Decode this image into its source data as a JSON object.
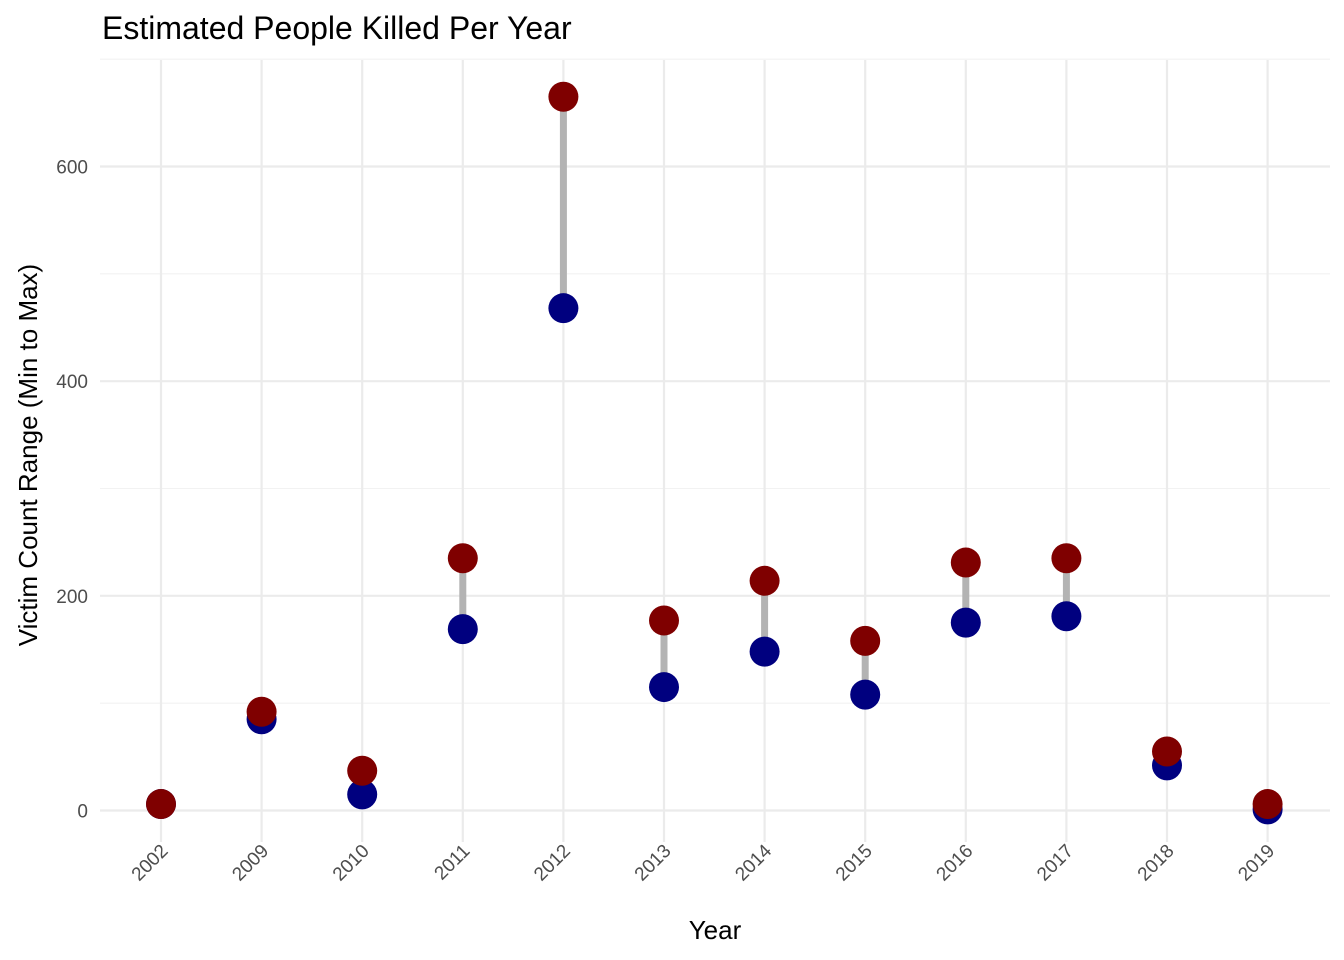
{
  "chart_data": {
    "type": "scatter",
    "subtype": "dumbbell",
    "title": "Estimated People Killed Per Year",
    "xlabel": "Year",
    "ylabel": "Victim Count Range (Min to Max)",
    "categories": [
      "2002",
      "2009",
      "2010",
      "2011",
      "2012",
      "2013",
      "2014",
      "2015",
      "2016",
      "2017",
      "2018",
      "2019"
    ],
    "series": [
      {
        "name": "min",
        "color": "#00007f",
        "values": [
          6,
          85,
          15,
          169,
          468,
          115,
          148,
          108,
          175,
          181,
          42,
          1
        ]
      },
      {
        "name": "max",
        "color": "#7f0000",
        "values": [
          6,
          92,
          37,
          235,
          665,
          177,
          214,
          158,
          231,
          235,
          55,
          6
        ]
      }
    ],
    "connector_color": "#b3b3b3",
    "ylim": [
      -30,
      700
    ],
    "yticks": [
      0,
      200,
      400,
      600
    ],
    "grid": true,
    "legend": "none"
  }
}
